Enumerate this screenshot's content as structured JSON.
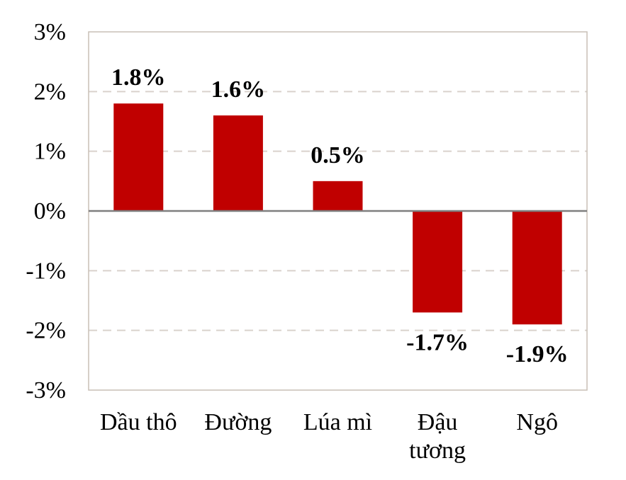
{
  "chart_data": {
    "type": "bar",
    "categories": [
      [
        "Dầu thô"
      ],
      [
        "Đường"
      ],
      [
        "Lúa mì"
      ],
      [
        "Đậu",
        "tương"
      ],
      [
        "Ngô"
      ]
    ],
    "values": [
      1.8,
      1.6,
      0.5,
      -1.7,
      -1.9
    ],
    "data_labels": [
      "1.8%",
      "1.6%",
      "0.5%",
      "-1.7%",
      "-1.9%"
    ],
    "yticks": [
      3,
      2,
      1,
      0,
      -1,
      -2,
      -3
    ],
    "ytick_labels": [
      "3%",
      "2%",
      "1%",
      "0%",
      "-1%",
      "-2%",
      "-3%"
    ],
    "ylim": [
      -3,
      3
    ],
    "grid": true,
    "title": "",
    "xlabel": "",
    "ylabel": "",
    "colors": {
      "bar": "#c00000",
      "gridline": "#d9d2cc",
      "zero_line": "#7f7f7f",
      "frame": "#c8bfb6"
    }
  }
}
